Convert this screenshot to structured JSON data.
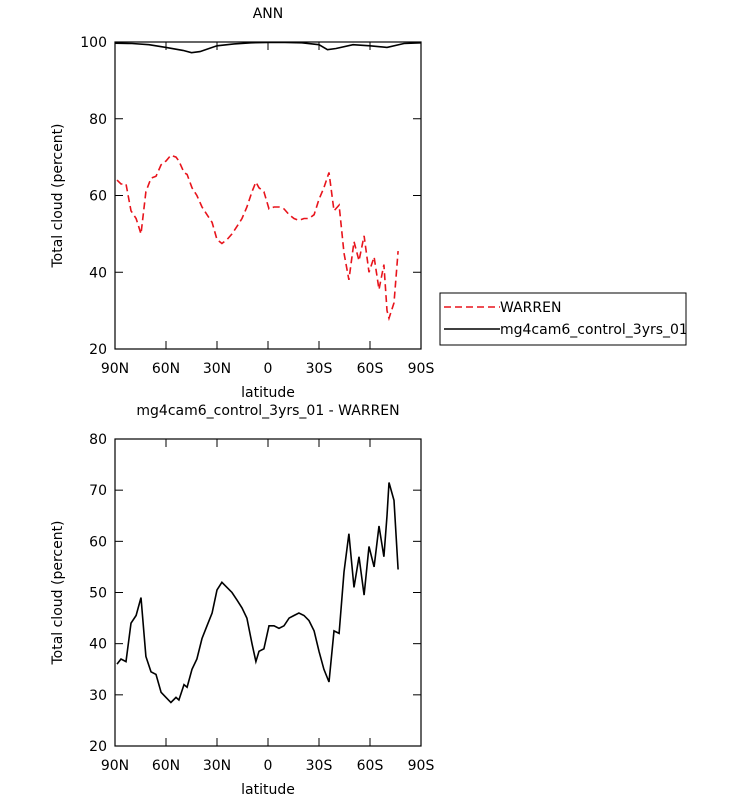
{
  "chart_data": [
    {
      "type": "line",
      "title": "ANN",
      "x_label": "latitude",
      "y_label": "Total cloud (percent)",
      "xlim": [
        90,
        -90
      ],
      "xticks": [
        {
          "value": 90,
          "label": "90N"
        },
        {
          "value": 60,
          "label": "60N"
        },
        {
          "value": 30,
          "label": "30N"
        },
        0,
        {
          "value": -30,
          "label": "30S"
        },
        {
          "value": -60,
          "label": "60S"
        },
        {
          "value": -90,
          "label": "90S"
        }
      ],
      "ylim": [
        20,
        100
      ],
      "yticks": [
        20,
        40,
        60,
        80,
        100
      ],
      "legend": "right",
      "series": [
        {
          "name": "WARREN",
          "color": "#e8141c",
          "linestyle": "dashed",
          "x": [
            88.8,
            86.5,
            83.5,
            80.6,
            77.6,
            74.7,
            71.8,
            68.8,
            65.9,
            62.9,
            60,
            57.1,
            54.1,
            52.4,
            49.4,
            47.6,
            44.7,
            41.8,
            38.8,
            35.9,
            32.9,
            30,
            27.1,
            24.1,
            21.2,
            18.2,
            15.3,
            12.4,
            9.4,
            7.1,
            5.3,
            2.4,
            -0.6,
            -3.5,
            -6.5,
            -9.4,
            -12.4,
            -15.3,
            -18.2,
            -21.2,
            -24.1,
            -27.1,
            -30,
            -32.9,
            -35.9,
            -38.8,
            -41.8,
            -44.7,
            -47.6,
            -50.6,
            -53.5,
            -56.5,
            -59.4,
            -62.4,
            -65.3,
            -68.2,
            -70,
            -71.2,
            -74.1,
            -76.5
          ],
          "values": [
            64,
            63,
            63,
            56,
            54,
            50,
            61,
            64.5,
            65,
            68,
            69,
            70.5,
            70,
            69,
            66,
            65.5,
            62,
            60,
            57,
            55,
            53,
            48.5,
            47.5,
            48.5,
            50,
            52,
            54,
            57,
            61,
            63.5,
            62,
            61,
            56.5,
            57,
            57,
            56.5,
            55,
            54,
            53.5,
            54,
            54,
            55,
            59,
            62,
            66,
            56,
            57.5,
            45,
            38,
            48,
            43,
            49.5,
            40,
            44,
            35.5,
            42,
            30,
            28,
            32,
            45.5
          ]
        },
        {
          "name": "mg4cam6_control_3yrs_01",
          "color": "#000000",
          "linestyle": "solid",
          "x": [
            90,
            80,
            70,
            60,
            50,
            45,
            40,
            30,
            20,
            10,
            0,
            -10,
            -20,
            -30,
            -35,
            -40,
            -50,
            -60,
            -70,
            -80,
            -90
          ],
          "values": [
            99.7,
            99.6,
            99.3,
            98.6,
            97.8,
            97.2,
            97.5,
            99,
            99.5,
            99.8,
            99.9,
            99.9,
            99.8,
            99.3,
            98,
            98.3,
            99.3,
            99,
            98.6,
            99.6,
            99.8
          ]
        }
      ]
    },
    {
      "type": "line",
      "title": "mg4cam6_control_3yrs_01 - WARREN",
      "x_label": "latitude",
      "y_label": "Total cloud (percent)",
      "xlim": [
        90,
        -90
      ],
      "xticks": [
        {
          "value": 90,
          "label": "90N"
        },
        {
          "value": 60,
          "label": "60N"
        },
        {
          "value": 30,
          "label": "30N"
        },
        0,
        {
          "value": -30,
          "label": "30S"
        },
        {
          "value": -60,
          "label": "60S"
        },
        {
          "value": -90,
          "label": "90S"
        }
      ],
      "ylim": [
        20,
        80
      ],
      "yticks": [
        20,
        30,
        40,
        50,
        60,
        70,
        80
      ],
      "series": [
        {
          "color": "#000000",
          "linestyle": "solid",
          "x": [
            88.8,
            86.5,
            83.5,
            80.6,
            77.6,
            74.7,
            71.8,
            68.8,
            65.9,
            62.9,
            60,
            57.1,
            54.1,
            52.4,
            49.4,
            47.6,
            44.7,
            41.8,
            38.8,
            35.9,
            32.9,
            30,
            27.1,
            24.1,
            21.2,
            18.2,
            15.3,
            12.4,
            9.4,
            7.1,
            5.3,
            2.4,
            -0.6,
            -3.5,
            -6.5,
            -9.4,
            -12.4,
            -15.3,
            -18.2,
            -21.2,
            -24.1,
            -27.1,
            -30,
            -32.9,
            -35.9,
            -38.8,
            -41.8,
            -44.7,
            -47.6,
            -50.6,
            -53.5,
            -56.5,
            -59.4,
            -62.4,
            -65.3,
            -68.2,
            -70,
            -71.2,
            -74.1,
            -76.5
          ],
          "values": [
            36,
            37,
            36.5,
            44,
            45.5,
            49,
            37.5,
            34.5,
            34,
            30.5,
            29.5,
            28.5,
            29.5,
            29,
            32,
            31.5,
            35,
            37,
            41,
            43.5,
            46,
            50.5,
            52,
            51,
            50,
            48.5,
            47,
            45,
            40,
            36.5,
            38.5,
            39,
            43.5,
            43.5,
            43,
            43.5,
            45,
            45.5,
            46,
            45.5,
            44.5,
            42.5,
            38.5,
            35,
            32.5,
            42.5,
            42,
            54,
            61.5,
            51,
            57,
            49.5,
            59,
            55,
            63,
            57,
            65,
            71.5,
            68,
            54.5
          ]
        }
      ]
    }
  ]
}
